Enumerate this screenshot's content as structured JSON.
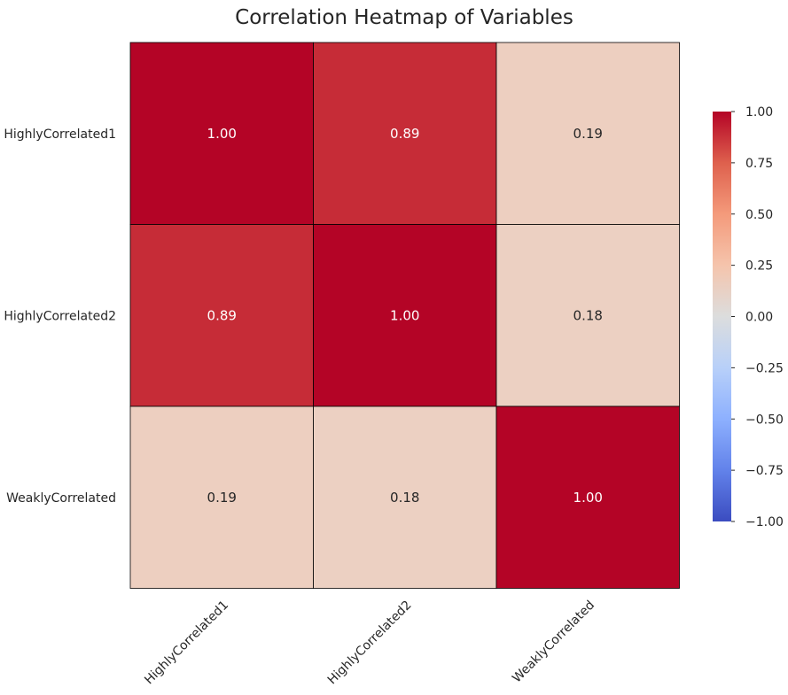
{
  "chart_data": {
    "type": "heatmap",
    "title": "Correlation Heatmap of Variables",
    "xlabel": "",
    "ylabel": "",
    "row_labels": [
      "HighlyCorrelated1",
      "HighlyCorrelated2",
      "WeaklyCorrelated"
    ],
    "col_labels": [
      "HighlyCorrelated1",
      "HighlyCorrelated2",
      "WeaklyCorrelated"
    ],
    "values": [
      [
        1.0,
        0.89,
        0.19
      ],
      [
        0.89,
        1.0,
        0.18
      ],
      [
        0.19,
        0.18,
        1.0
      ]
    ],
    "annotation_format": "0.00",
    "colormap": "coolwarm",
    "vmin": -1.0,
    "vmax": 1.0,
    "colorbar_ticks": [
      1.0,
      0.75,
      0.5,
      0.25,
      0.0,
      -0.25,
      -0.5,
      -0.75,
      -1.0
    ],
    "colorbar_tick_labels": [
      "1.00",
      "0.75",
      "0.50",
      "0.25",
      "0.00",
      "−0.25",
      "−0.50",
      "−0.75",
      "−1.00"
    ],
    "grid": false,
    "colorbar_position": "right"
  }
}
